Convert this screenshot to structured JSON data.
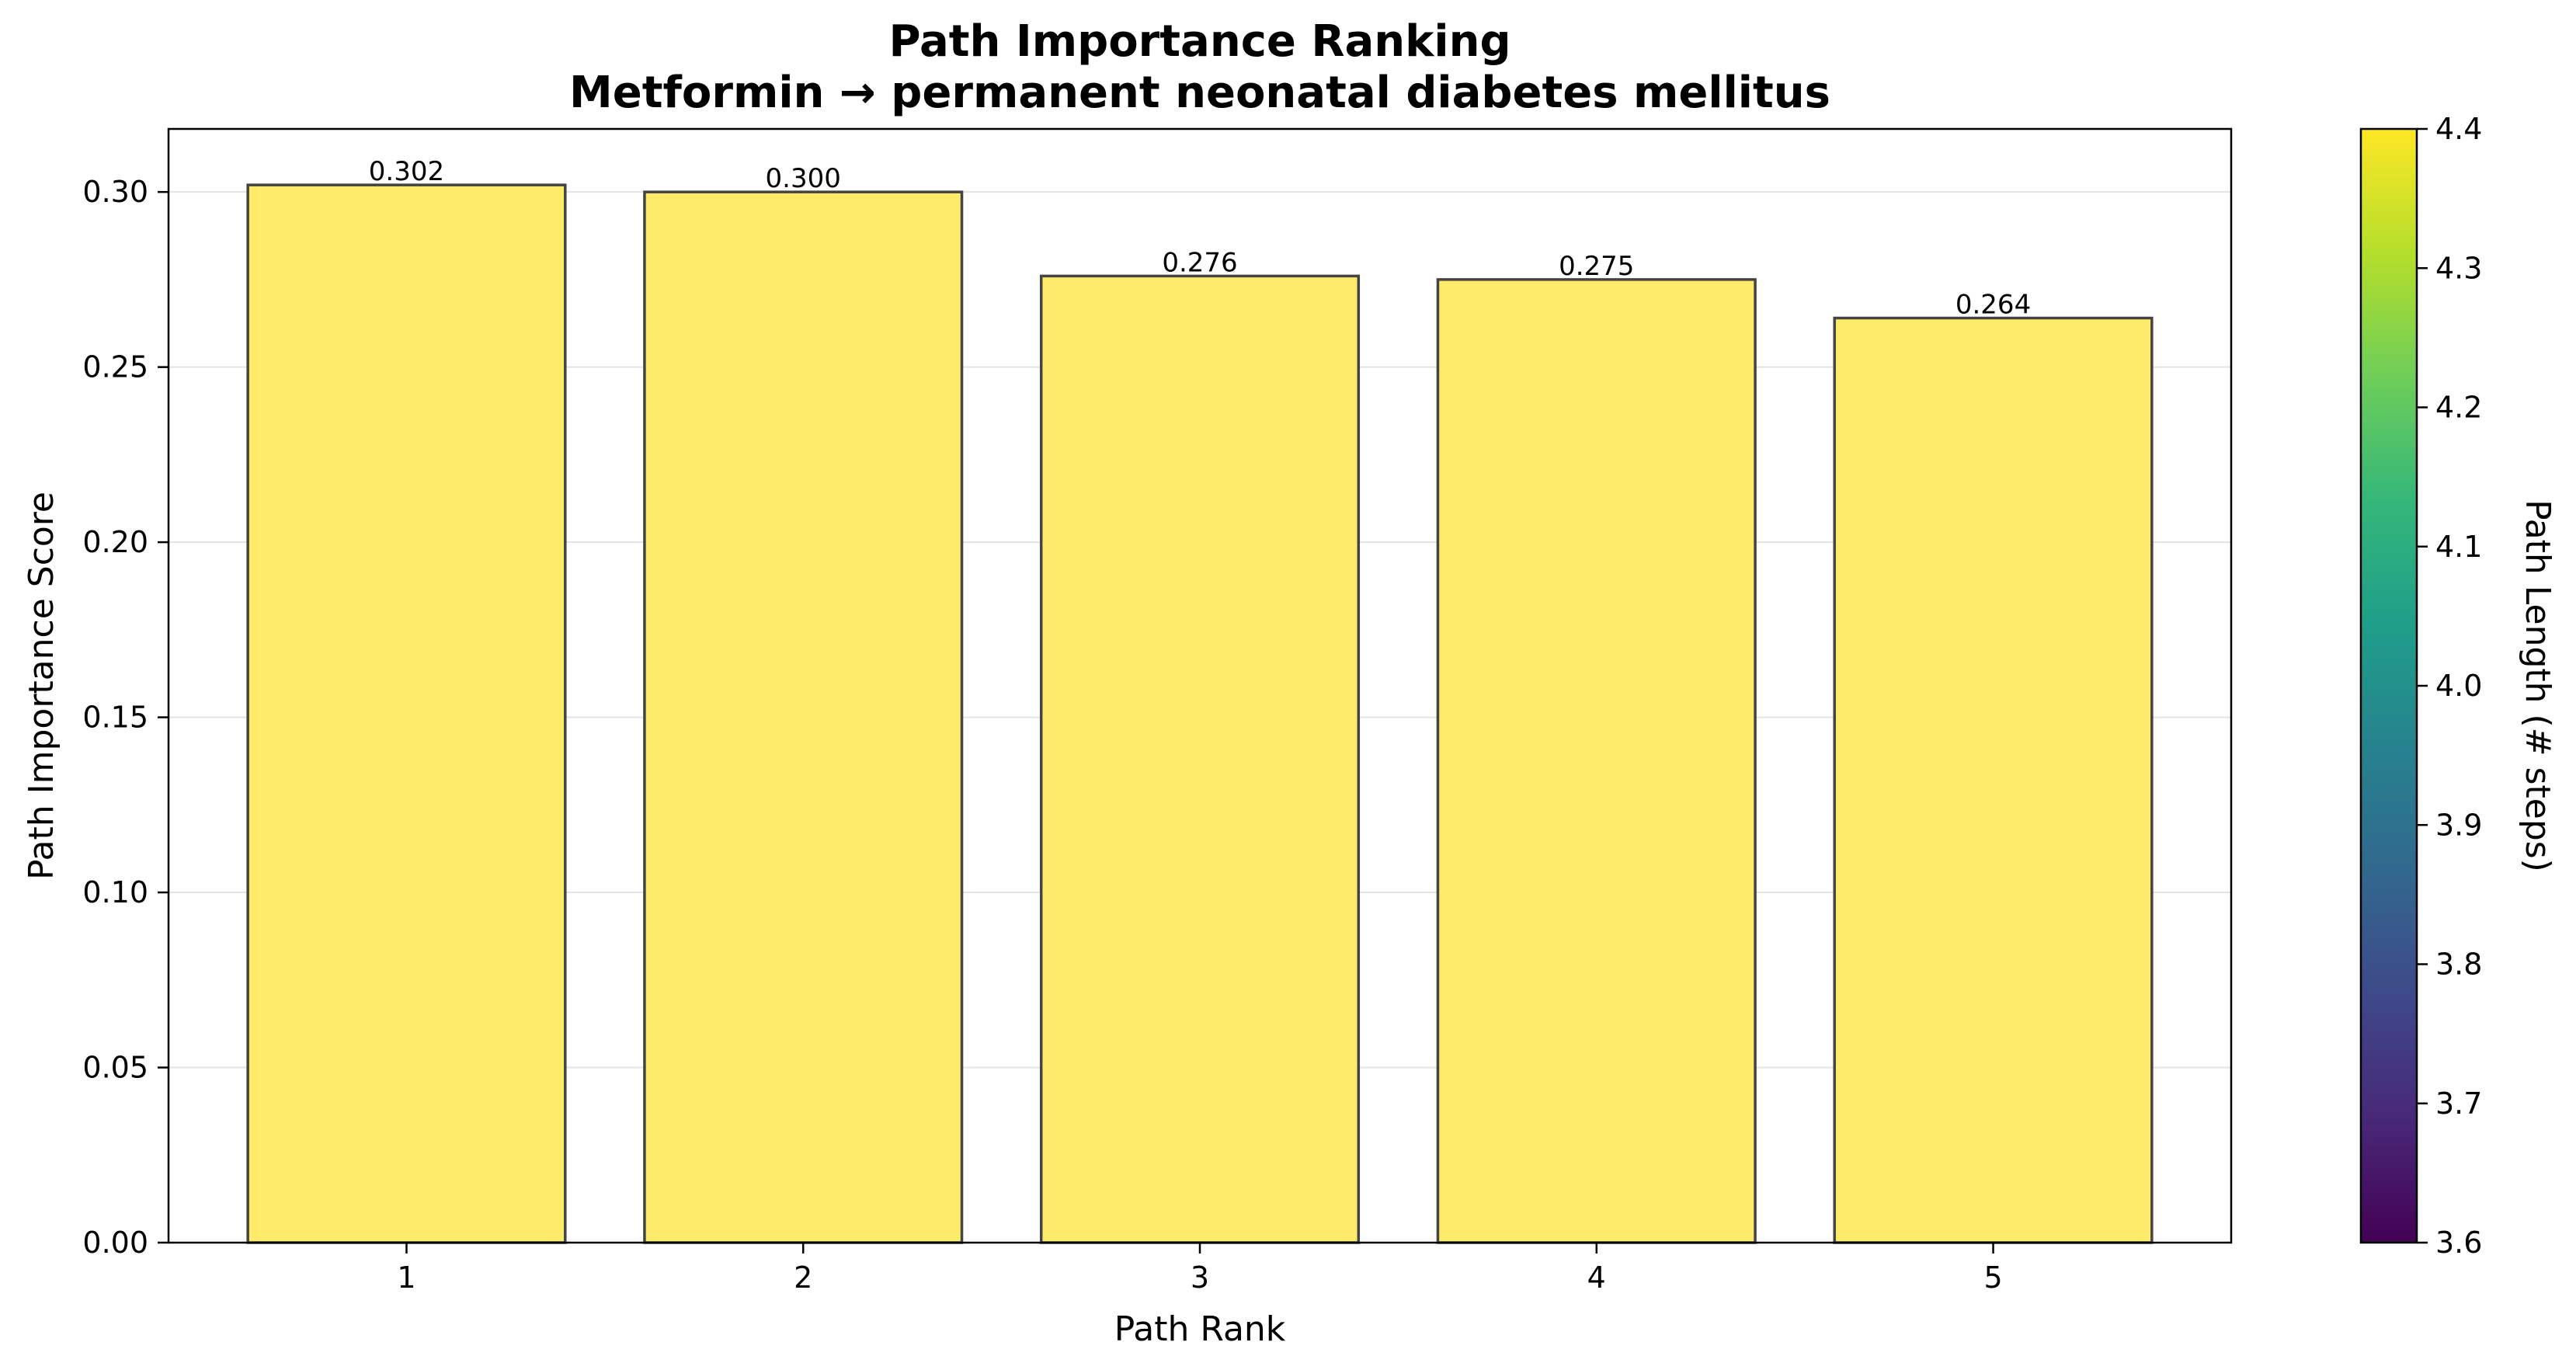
{
  "chart_data": {
    "type": "bar",
    "title": "Path Importance Ranking",
    "subtitle": "Metformin → permanent neonatal diabetes mellitus",
    "xlabel": "Path Rank",
    "ylabel": "Path Importance Score",
    "categories": [
      "1",
      "2",
      "3",
      "4",
      "5"
    ],
    "values": [
      0.302,
      0.3,
      0.276,
      0.275,
      0.264
    ],
    "value_labels": [
      "0.302",
      "0.300",
      "0.276",
      "0.275",
      "0.264"
    ],
    "ylim": [
      0,
      0.318
    ],
    "yticks": [
      0.0,
      0.05,
      0.1,
      0.15,
      0.2,
      0.25,
      0.3
    ],
    "ytick_labels": [
      "0.00",
      "0.05",
      "0.10",
      "0.15",
      "0.20",
      "0.25",
      "0.30"
    ],
    "grid": "horizontal",
    "bar_color": "#fdeb69",
    "bar_edge_color": "#444444",
    "colorbar": {
      "label": "Path Length (# steps)",
      "range": [
        3.6,
        4.4
      ],
      "ticks": [
        3.6,
        3.7,
        3.8,
        3.9,
        4.0,
        4.1,
        4.2,
        4.3,
        4.4
      ],
      "tick_labels": [
        "3.6",
        "3.7",
        "3.8",
        "3.9",
        "4.0",
        "4.1",
        "4.2",
        "4.3",
        "4.4"
      ],
      "colormap": "viridis",
      "colormap_stops": [
        "#440154",
        "#482878",
        "#3e4989",
        "#31688e",
        "#26828e",
        "#1f9e89",
        "#35b779",
        "#6ece58",
        "#b5de2b",
        "#fde725"
      ]
    }
  }
}
